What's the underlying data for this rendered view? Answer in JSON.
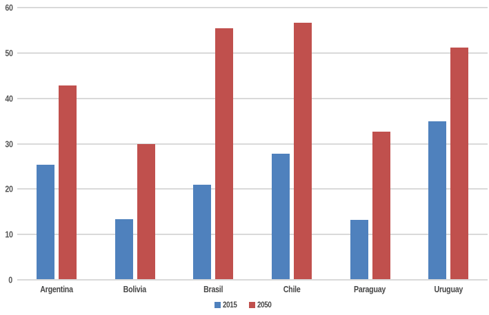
{
  "chart_data": {
    "type": "bar",
    "title": "",
    "xlabel": "",
    "ylabel": "",
    "categories": [
      "Argentina",
      "Bolivia",
      "Brasil",
      "Chile",
      "Paraguay",
      "Uruguay"
    ],
    "series": [
      {
        "name": "2015",
        "color": "#4f81bd",
        "values": [
          25.4,
          13.4,
          20.9,
          27.8,
          13.2,
          34.9
        ]
      },
      {
        "name": "2050",
        "color": "#c0504d",
        "values": [
          42.9,
          30.0,
          55.4,
          56.6,
          32.6,
          51.2
        ]
      }
    ],
    "ylim": [
      0,
      60
    ],
    "yticks": [
      0,
      10,
      20,
      30,
      40,
      50,
      60
    ],
    "grid": true,
    "legend_position": "bottom"
  },
  "colors": {
    "background": "#ffffff",
    "gridline": "#d9d9d9",
    "axis_line": "#d9d9d9",
    "ytick_label": "#555555",
    "category_label": "#474747",
    "series_2015": "#4f81bd",
    "series_2050": "#c0504d"
  }
}
